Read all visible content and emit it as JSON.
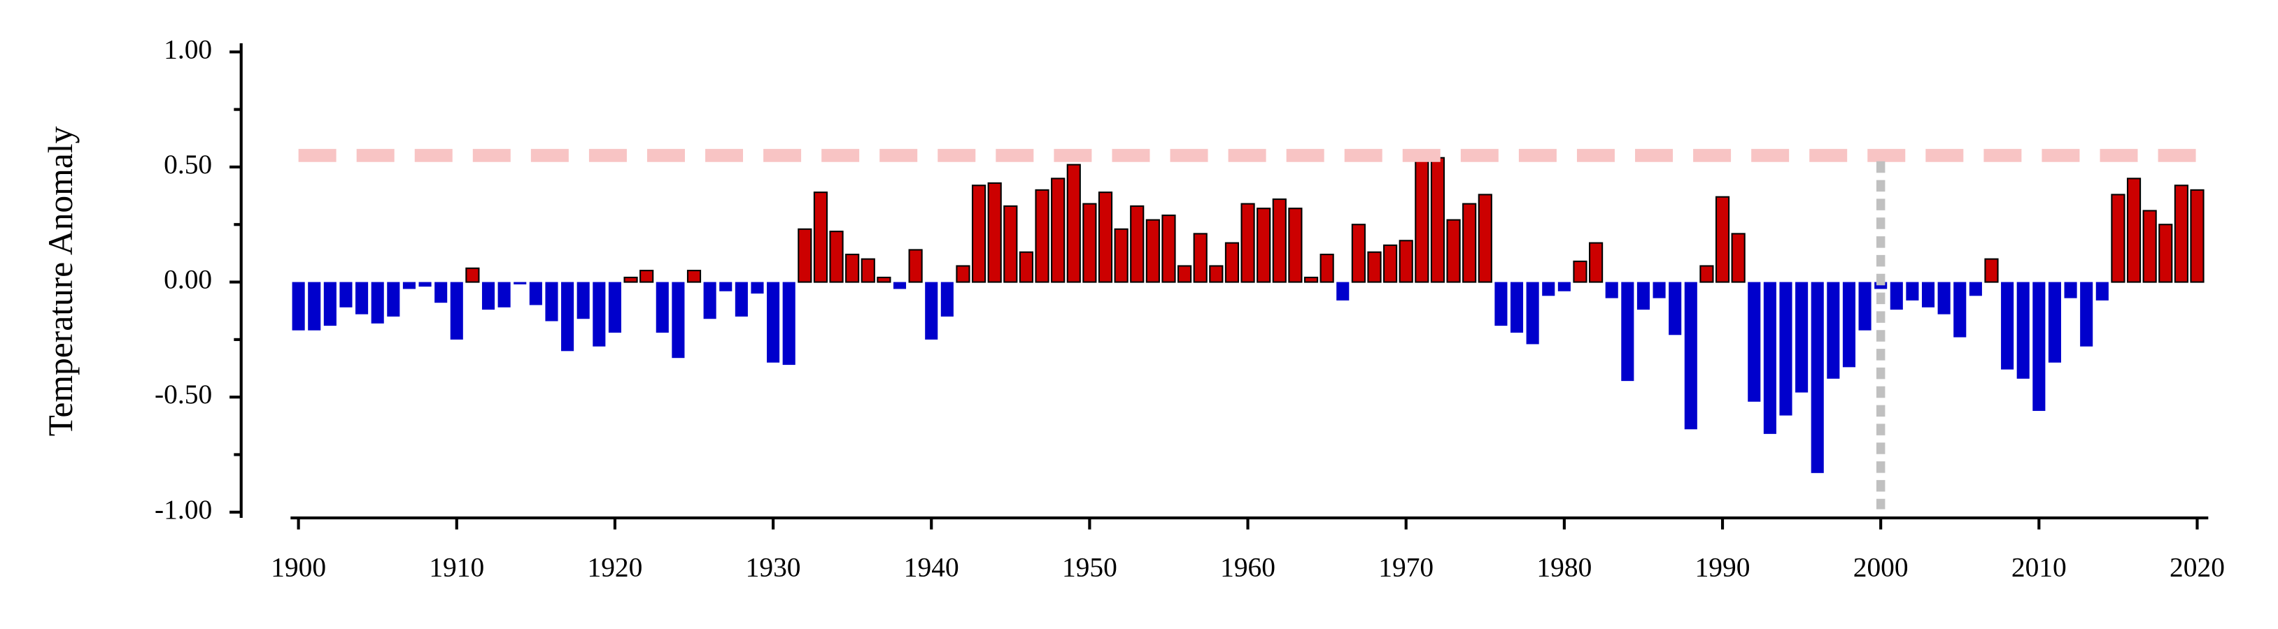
{
  "chart_data": {
    "type": "bar",
    "ylabel": "Temperature Anomaly",
    "x": [
      1900,
      1901,
      1902,
      1903,
      1904,
      1905,
      1906,
      1907,
      1908,
      1909,
      1910,
      1911,
      1912,
      1913,
      1914,
      1915,
      1916,
      1917,
      1918,
      1919,
      1920,
      1921,
      1922,
      1923,
      1924,
      1925,
      1926,
      1927,
      1928,
      1929,
      1930,
      1931,
      1932,
      1933,
      1934,
      1935,
      1936,
      1937,
      1938,
      1939,
      1940,
      1941,
      1942,
      1943,
      1944,
      1945,
      1946,
      1947,
      1948,
      1949,
      1950,
      1951,
      1952,
      1953,
      1954,
      1955,
      1956,
      1957,
      1958,
      1959,
      1960,
      1961,
      1962,
      1963,
      1964,
      1965,
      1966,
      1967,
      1968,
      1969,
      1970,
      1971,
      1972,
      1973,
      1974,
      1975,
      1976,
      1977,
      1978,
      1979,
      1980,
      1981,
      1982,
      1983,
      1984,
      1985,
      1986,
      1987,
      1988,
      1989,
      1990,
      1991,
      1992,
      1993,
      1994,
      1995,
      1996,
      1997,
      1998,
      1999,
      2000,
      2001,
      2002,
      2003,
      2004,
      2005,
      2006,
      2007,
      2008,
      2009,
      2010,
      2011,
      2012,
      2013,
      2014,
      2015,
      2016,
      2017,
      2018,
      2019,
      2020
    ],
    "values": [
      -0.21,
      -0.21,
      -0.19,
      -0.11,
      -0.14,
      -0.18,
      -0.15,
      -0.03,
      -0.02,
      -0.09,
      -0.25,
      0.06,
      -0.12,
      -0.11,
      -0.01,
      -0.1,
      -0.17,
      -0.3,
      -0.16,
      -0.28,
      -0.22,
      0.02,
      0.05,
      -0.22,
      -0.33,
      0.05,
      -0.16,
      -0.04,
      -0.15,
      -0.05,
      -0.35,
      -0.36,
      0.23,
      0.39,
      0.22,
      0.12,
      0.1,
      0.02,
      -0.03,
      0.14,
      -0.25,
      -0.15,
      0.07,
      0.42,
      0.43,
      0.33,
      0.13,
      0.4,
      0.45,
      0.51,
      0.34,
      0.39,
      0.23,
      0.33,
      0.27,
      0.29,
      0.07,
      0.21,
      0.07,
      0.17,
      0.34,
      0.32,
      0.36,
      0.32,
      0.02,
      0.12,
      -0.08,
      0.25,
      0.13,
      0.16,
      0.18,
      0.55,
      0.54,
      0.27,
      0.34,
      0.38,
      -0.19,
      -0.22,
      -0.27,
      -0.06,
      -0.04,
      0.09,
      0.17,
      -0.07,
      -0.43,
      -0.12,
      -0.07,
      -0.23,
      -0.64,
      0.07,
      0.37,
      0.21,
      -0.52,
      -0.66,
      -0.58,
      -0.48,
      -0.83,
      -0.42,
      -0.37,
      -0.21,
      -0.03,
      -0.12,
      -0.08,
      -0.11,
      -0.14,
      -0.24,
      -0.06,
      0.1,
      -0.38,
      -0.42,
      -0.56,
      -0.35,
      -0.07,
      -0.28,
      -0.08,
      0.38,
      0.45,
      0.31,
      0.25,
      0.42,
      0.4
    ],
    "positive_color": "#cc0000",
    "negative_color": "#0000cc",
    "xlim": [
      1899.5,
      2020.7
    ],
    "xticks": [
      1900,
      1910,
      1920,
      1930,
      1940,
      1950,
      1960,
      1970,
      1980,
      1990,
      2000,
      2010,
      2020
    ],
    "ylim": [
      -1.0,
      1.0
    ],
    "yticks": [
      {
        "value": -1.0,
        "label": "-1.00"
      },
      {
        "value": -0.5,
        "label": "-0.50"
      },
      {
        "value": 0,
        "label": "0.00"
      },
      {
        "value": 0.5,
        "label": "0.50"
      },
      {
        "value": 1.0,
        "label": "1.00"
      }
    ],
    "yminor_ticks": [
      -0.75,
      -0.25,
      0.25,
      0.75
    ],
    "hline": 0.55,
    "hline_color": "#f8c4c4",
    "vline": 2000,
    "vline_color": "#c0c0c0"
  }
}
